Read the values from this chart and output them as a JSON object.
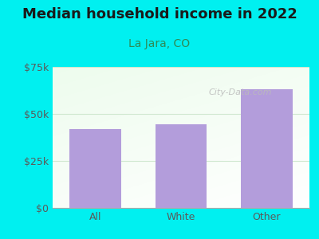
{
  "title": "Median household income in 2022",
  "subtitle": "La Jara, CO",
  "categories": [
    "All",
    "White",
    "Other"
  ],
  "values": [
    42000,
    44500,
    63000
  ],
  "bar_color": "#b39ddb",
  "ylim": [
    0,
    75000
  ],
  "ytick_labels": [
    "$0",
    "$25k",
    "$50k",
    "$75k"
  ],
  "ytick_values": [
    0,
    25000,
    50000,
    75000
  ],
  "background_outer": "#00f0f0",
  "title_color": "#1a1a1a",
  "subtitle_color": "#2e8b57",
  "axis_color": "#5a5a5a",
  "watermark_text": "City-Data.com",
  "grid_color": "#d0e8d0",
  "title_fontsize": 13,
  "subtitle_fontsize": 10,
  "bar_width": 0.6
}
